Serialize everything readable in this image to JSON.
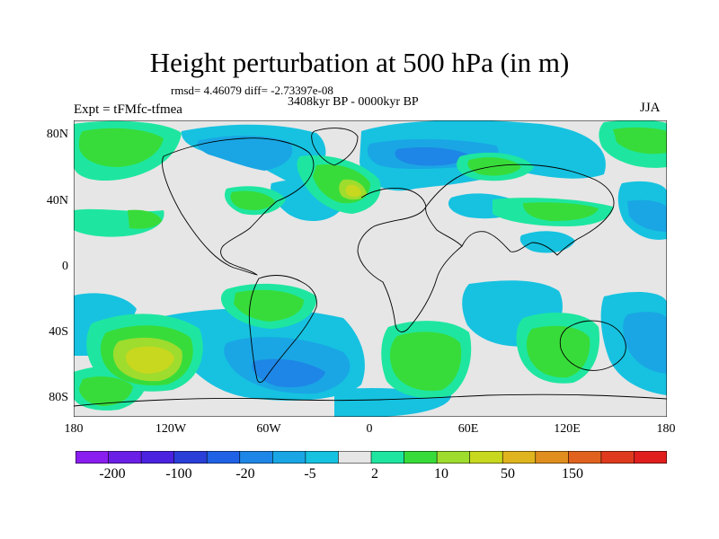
{
  "title": "Height perturbation at 500 hPa (in m)",
  "stats": "rmsd= 4.46079 diff= -2.73397e-08",
  "period": "3408kyr BP - 0000kyr BP",
  "experiment": "Expt = tFMfc-tfmea",
  "season": "JJA",
  "axes": {
    "lat_labels": [
      "80N",
      "40N",
      "0",
      "40S",
      "80S"
    ],
    "lon_labels": [
      "180",
      "120W",
      "60W",
      "0",
      "60E",
      "120E",
      "180"
    ]
  },
  "colorbar": {
    "colors": [
      "#8a1ef0",
      "#6b1ee6",
      "#4a22e0",
      "#2a3ed8",
      "#1f62e6",
      "#1e86e6",
      "#1aa6e4",
      "#16c2e0",
      "#e6e6e6",
      "#1ee6a0",
      "#38dc3a",
      "#9edc2e",
      "#c8d81e",
      "#e0b41e",
      "#e08e1e",
      "#e0621e",
      "#e03a1e",
      "#e01e1e"
    ],
    "labels": [
      "-200",
      "-100",
      "-20",
      "-5",
      "2",
      "10",
      "50",
      "150"
    ]
  }
}
